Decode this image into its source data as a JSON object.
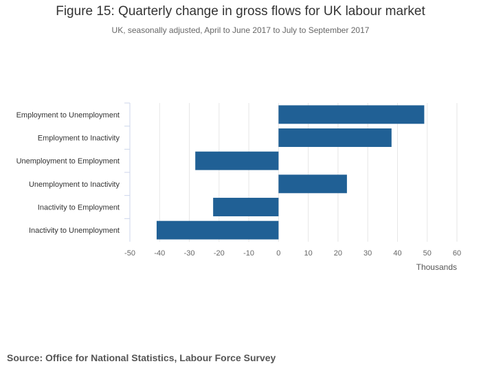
{
  "chart_data": {
    "type": "bar",
    "orientation": "horizontal",
    "title": "Figure 15: Quarterly change in gross flows for UK labour market",
    "subtitle": "UK, seasonally adjusted, April to June 2017 to July to September 2017",
    "categories": [
      "Employment to Unemployment",
      "Employment to Inactivity",
      "Unemployment to Employment",
      "Unemployment to Inactivity",
      "Inactivity to Employment",
      "Inactivity to Unemployment"
    ],
    "values": [
      49,
      38,
      -28,
      23,
      -22,
      -41
    ],
    "xlabel": "Thousands",
    "ylabel": "",
    "xlim": [
      -50,
      60
    ],
    "xticks": [
      -50,
      -40,
      -30,
      -20,
      -10,
      0,
      10,
      20,
      30,
      40,
      50,
      60
    ],
    "grid": true,
    "bar_color": "#206095",
    "grid_color": "#e6e6e6"
  },
  "source": "Source: Office for National Statistics, Labour Force Survey"
}
